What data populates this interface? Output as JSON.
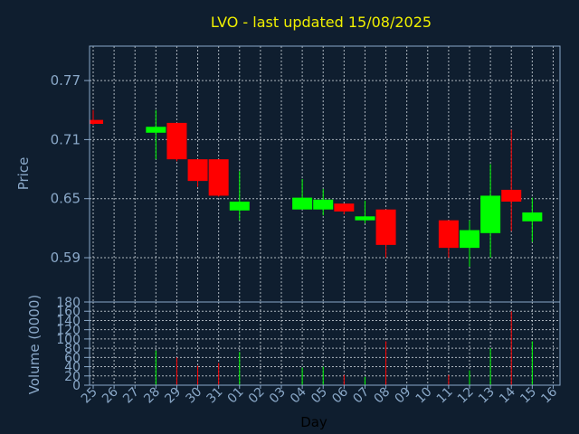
{
  "chart_data": [
    {
      "type": "candlestick",
      "title": "LVO - last updated 15/08/2025",
      "ylabel": "Price",
      "ylim": [
        0.545,
        0.805
      ],
      "yticks": [
        "0.77",
        "0.71",
        "0.65",
        "0.59"
      ],
      "ytick_values": [
        0.77,
        0.71,
        0.65,
        0.59
      ],
      "grid": true,
      "colors": {
        "up": "#00ff00",
        "down": "#ff0000",
        "background": "#0f1e2f",
        "text": "#8aa8c8",
        "title": "#f0f000"
      },
      "candles": [
        {
          "day": "25",
          "open": 0.73,
          "high": 0.74,
          "low": 0.725,
          "close": 0.726
        },
        {
          "day": "28",
          "open": 0.717,
          "high": 0.74,
          "low": 0.69,
          "close": 0.723
        },
        {
          "day": "29",
          "open": 0.727,
          "high": 0.727,
          "low": 0.688,
          "close": 0.69
        },
        {
          "day": "30",
          "open": 0.69,
          "high": 0.69,
          "low": 0.662,
          "close": 0.668
        },
        {
          "day": "31",
          "open": 0.69,
          "high": 0.69,
          "low": 0.652,
          "close": 0.653
        },
        {
          "day": "01",
          "open": 0.638,
          "high": 0.678,
          "low": 0.628,
          "close": 0.647
        },
        {
          "day": "04",
          "open": 0.639,
          "high": 0.67,
          "low": 0.639,
          "close": 0.651
        },
        {
          "day": "05",
          "open": 0.639,
          "high": 0.66,
          "low": 0.633,
          "close": 0.649
        },
        {
          "day": "06",
          "open": 0.645,
          "high": 0.645,
          "low": 0.634,
          "close": 0.637
        },
        {
          "day": "07",
          "open": 0.628,
          "high": 0.648,
          "low": 0.625,
          "close": 0.632
        },
        {
          "day": "08",
          "open": 0.639,
          "high": 0.639,
          "low": 0.59,
          "close": 0.603
        },
        {
          "day": "11",
          "open": 0.628,
          "high": 0.628,
          "low": 0.59,
          "close": 0.6
        },
        {
          "day": "12",
          "open": 0.6,
          "high": 0.628,
          "low": 0.581,
          "close": 0.618
        },
        {
          "day": "13",
          "open": 0.615,
          "high": 0.685,
          "low": 0.59,
          "close": 0.653
        },
        {
          "day": "14",
          "open": 0.659,
          "high": 0.72,
          "low": 0.617,
          "close": 0.647
        },
        {
          "day": "15",
          "open": 0.627,
          "high": 0.651,
          "low": 0.606,
          "close": 0.636
        }
      ]
    },
    {
      "type": "bar",
      "ylabel": "Volume (0000)",
      "xlabel": "Day",
      "ylim": [
        0,
        180
      ],
      "yticks": [
        "180",
        "160",
        "140",
        "120",
        "100",
        "80",
        "60",
        "40",
        "20",
        "0"
      ],
      "ytick_values": [
        180,
        160,
        140,
        120,
        100,
        80,
        60,
        40,
        20,
        0
      ],
      "categories": [
        "25",
        "26",
        "27",
        "28",
        "29",
        "30",
        "31",
        "01",
        "02",
        "03",
        "04",
        "05",
        "06",
        "07",
        "08",
        "09",
        "10",
        "11",
        "12",
        "13",
        "14",
        "15",
        "16"
      ],
      "volumes": [
        {
          "day": "28",
          "value": 75,
          "dir": "up"
        },
        {
          "day": "29",
          "value": 60,
          "dir": "down"
        },
        {
          "day": "30",
          "value": 42,
          "dir": "down"
        },
        {
          "day": "31",
          "value": 48,
          "dir": "down"
        },
        {
          "day": "01",
          "value": 72,
          "dir": "up"
        },
        {
          "day": "04",
          "value": 38,
          "dir": "up"
        },
        {
          "day": "05",
          "value": 40,
          "dir": "up"
        },
        {
          "day": "06",
          "value": 22,
          "dir": "down"
        },
        {
          "day": "07",
          "value": 18,
          "dir": "up"
        },
        {
          "day": "08",
          "value": 95,
          "dir": "down"
        },
        {
          "day": "11",
          "value": 22,
          "dir": "down"
        },
        {
          "day": "12",
          "value": 32,
          "dir": "up"
        },
        {
          "day": "13",
          "value": 80,
          "dir": "up"
        },
        {
          "day": "14",
          "value": 160,
          "dir": "down"
        },
        {
          "day": "15",
          "value": 95,
          "dir": "up"
        }
      ]
    }
  ]
}
